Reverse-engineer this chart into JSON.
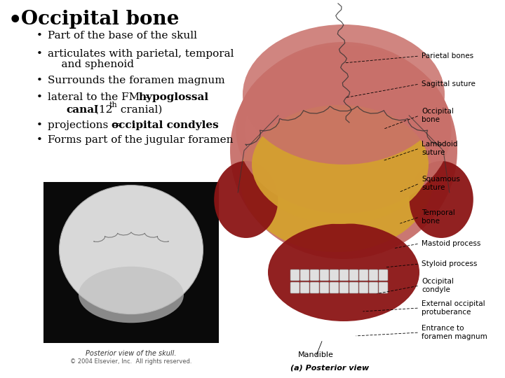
{
  "background_color": "#ffffff",
  "title": "Occipital bone",
  "title_fontsize": 20,
  "bullet_color": "#000000",
  "text_fontsize": 11,
  "caption_text": "Posterior view of the skull.",
  "copyright_text": "© 2004 Elsevier, Inc.  All rights reserved.",
  "caption_fontsize": 7,
  "parietal_color": "#c8706a",
  "occipital_color": "#d4a030",
  "jaw_color": "#8b1515",
  "teeth_color": "#cccccc",
  "bottom_label": "(a) Posterior view"
}
